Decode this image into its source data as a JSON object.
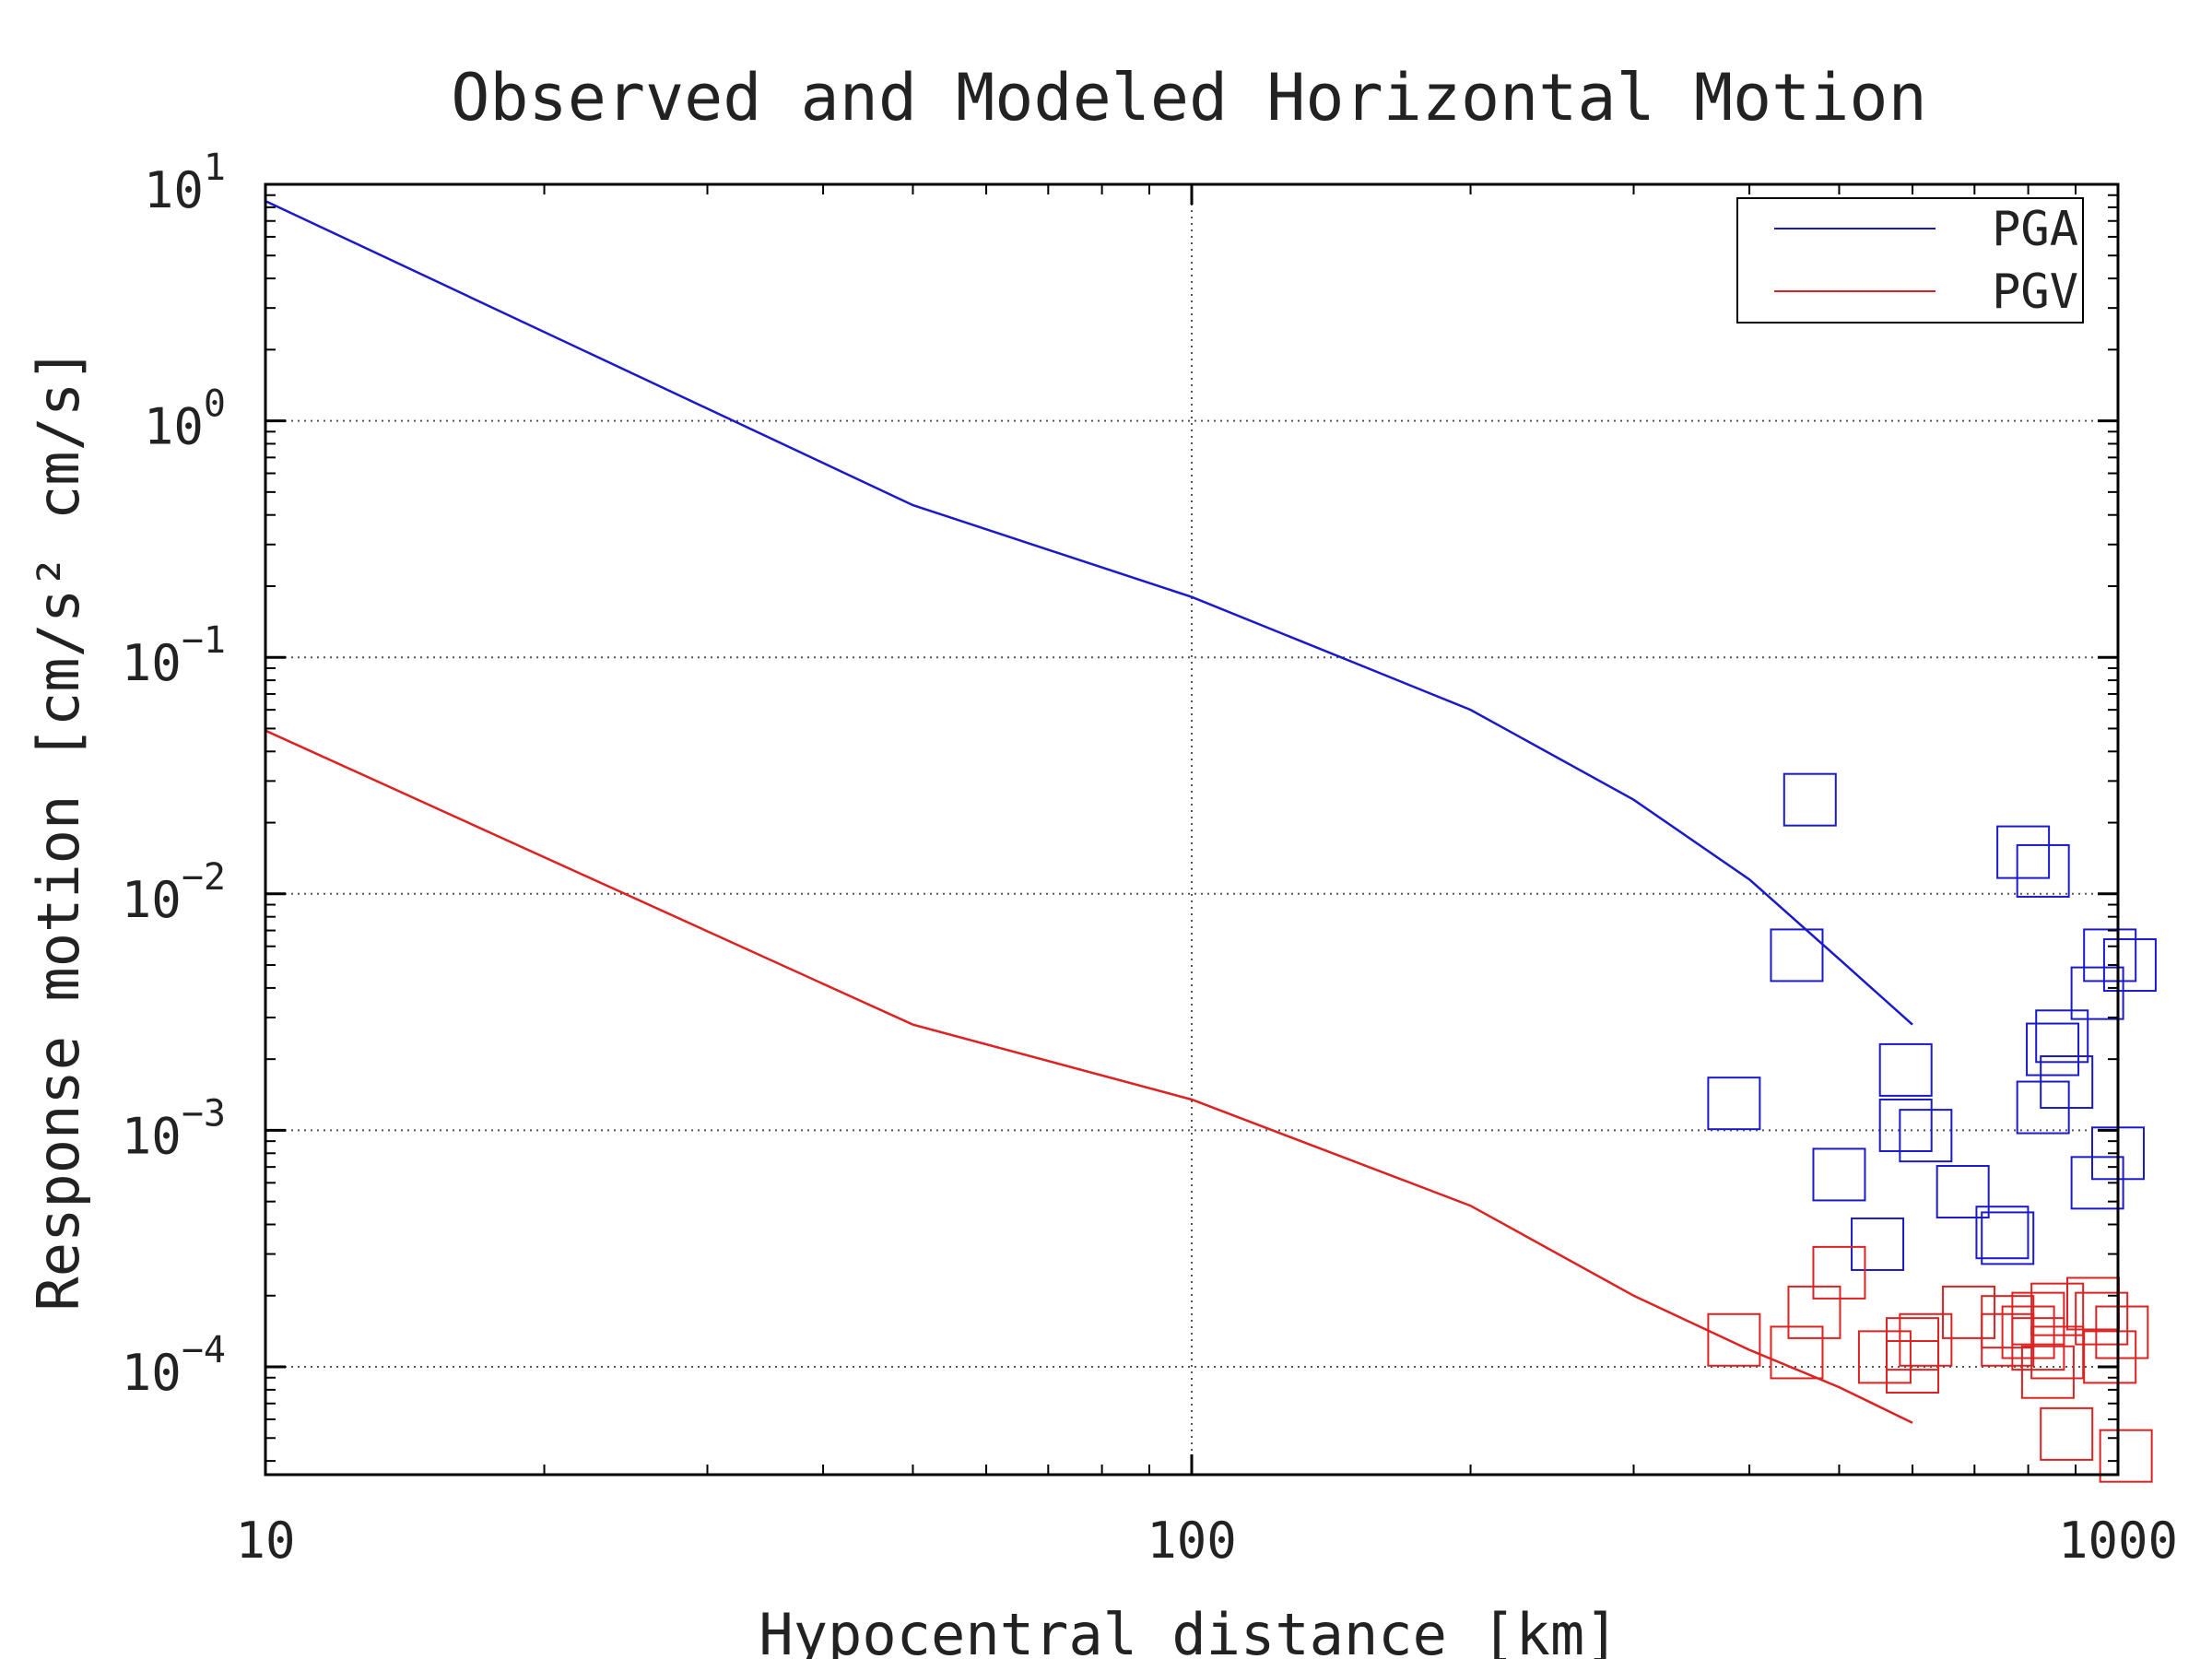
{
  "chart_data": {
    "type": "scatter",
    "title": "Observed and Modeled Horizontal Motion",
    "xlabel": "Hypocentral distance [km]",
    "ylabel": "Response motion  [cm/s²  cm/s]",
    "xscale": "log",
    "yscale": "log",
    "xlim": [
      10,
      1000
    ],
    "ylim": [
      3.5e-05,
      10
    ],
    "x_ticks": [
      {
        "value": 10,
        "label": "10"
      },
      {
        "value": 100,
        "label": "100"
      },
      {
        "value": 1000,
        "label": "1000"
      }
    ],
    "y_ticks": [
      {
        "value": 10,
        "base": "10",
        "exp": "1"
      },
      {
        "value": 1,
        "base": "10",
        "exp": "0"
      },
      {
        "value": 0.1,
        "base": "10",
        "exp": "−1"
      },
      {
        "value": 0.01,
        "base": "10",
        "exp": "−2"
      },
      {
        "value": 0.001,
        "base": "10",
        "exp": "−3"
      },
      {
        "value": 0.0001,
        "base": "10",
        "exp": "−4"
      }
    ],
    "grid": true,
    "legend_position": "top-right",
    "series": [
      {
        "name": "PGA",
        "color": "#1a1acc",
        "line": [
          [
            10,
            8.5
          ],
          [
            50,
            0.44
          ],
          [
            100,
            0.18
          ],
          [
            200,
            0.06
          ],
          [
            300,
            0.025
          ],
          [
            400,
            0.0115
          ],
          [
            500,
            0.0053
          ],
          [
            600,
            0.0028
          ]
        ],
        "points": [
          [
            450,
            0.0055
          ],
          [
            465,
            0.025
          ],
          [
            385,
            0.0013
          ],
          [
            590,
            0.0018
          ],
          [
            620,
            0.00095
          ],
          [
            590,
            0.00105
          ],
          [
            500,
            0.00065
          ],
          [
            550,
            0.00033
          ],
          [
            680,
            0.00055
          ],
          [
            760,
            0.00035
          ],
          [
            750,
            0.00037
          ],
          [
            790,
            0.015
          ],
          [
            830,
            0.0125
          ],
          [
            870,
            0.0025
          ],
          [
            850,
            0.0022
          ],
          [
            880,
            0.0016
          ],
          [
            830,
            0.00125
          ],
          [
            950,
            0.0038
          ],
          [
            980,
            0.0055
          ],
          [
            1030,
            0.005
          ],
          [
            950,
            0.0006
          ],
          [
            1000,
            0.0008
          ]
        ]
      },
      {
        "name": "PGV",
        "color": "#dd2222",
        "line": [
          [
            10,
            0.049
          ],
          [
            50,
            0.0028
          ],
          [
            100,
            0.00135
          ],
          [
            200,
            0.00048
          ],
          [
            300,
            0.0002
          ],
          [
            400,
            0.000118
          ],
          [
            500,
            8.2e-05
          ],
          [
            600,
            5.8e-05
          ]
        ],
        "points": [
          [
            385,
            0.00013
          ],
          [
            450,
            0.000115
          ],
          [
            470,
            0.00017
          ],
          [
            500,
            0.00025
          ],
          [
            560,
            0.00011
          ],
          [
            600,
            0.000125
          ],
          [
            620,
            0.00013
          ],
          [
            600,
            0.0001
          ],
          [
            690,
            0.00017
          ],
          [
            760,
            0.000155
          ],
          [
            760,
            0.00013
          ],
          [
            800,
            0.00014
          ],
          [
            820,
            0.000125
          ],
          [
            820,
            0.00016
          ],
          [
            860,
            0.000175
          ],
          [
            860,
            0.000115
          ],
          [
            840,
            9.5e-05
          ],
          [
            880,
            5.2e-05
          ],
          [
            940,
            0.000185
          ],
          [
            960,
            0.00016
          ],
          [
            980,
            0.00011
          ],
          [
            1010,
            0.00014
          ],
          [
            1020,
            4.2e-05
          ]
        ]
      }
    ]
  }
}
